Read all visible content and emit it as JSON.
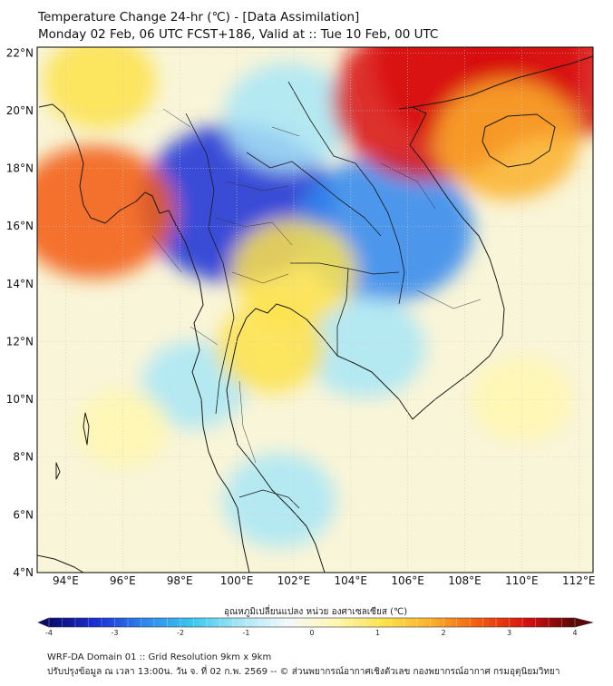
{
  "header": {
    "title": "Temperature Change 24-hr (℃) - [Data Assimilation]",
    "subtitle": "Monday 02 Feb, 06 UTC FCST+186, Valid at :: Tue 10 Feb, 00 UTC"
  },
  "map": {
    "lon_range": [
      93,
      112.5
    ],
    "lat_range": [
      4,
      22.2
    ],
    "lon_ticks": [
      {
        "value": 94,
        "label": "94°E"
      },
      {
        "value": 96,
        "label": "96°E"
      },
      {
        "value": 98,
        "label": "98°E"
      },
      {
        "value": 100,
        "label": "100°E"
      },
      {
        "value": 102,
        "label": "102°E"
      },
      {
        "value": 104,
        "label": "104°E"
      },
      {
        "value": 106,
        "label": "106°E"
      },
      {
        "value": 108,
        "label": "108°E"
      },
      {
        "value": 110,
        "label": "110°E"
      },
      {
        "value": 112,
        "label": "112°E"
      }
    ],
    "lat_ticks": [
      {
        "value": 22,
        "label": "22°N"
      },
      {
        "value": 20,
        "label": "20°N"
      },
      {
        "value": 18,
        "label": "18°N"
      },
      {
        "value": 16,
        "label": "16°N"
      },
      {
        "value": 14,
        "label": "14°N"
      },
      {
        "value": 12,
        "label": "12°N"
      },
      {
        "value": 10,
        "label": "10°N"
      },
      {
        "value": 8,
        "label": "8°N"
      },
      {
        "value": 6,
        "label": "6°N"
      },
      {
        "value": 4,
        "label": "4°N"
      }
    ],
    "anomalies": [
      {
        "lon": 100.0,
        "lat": 16.8,
        "value": -3.0
      },
      {
        "lon": 105.2,
        "lat": 15.9,
        "value": -2.6
      },
      {
        "lon": 101.8,
        "lat": 19.8,
        "value": -1.4
      },
      {
        "lon": 104.5,
        "lat": 11.8,
        "value": -1.2
      },
      {
        "lon": 101.5,
        "lat": 6.5,
        "value": -1.0
      },
      {
        "lon": 98.5,
        "lat": 10.5,
        "value": -0.8
      },
      {
        "lon": 108.5,
        "lat": 21.6,
        "value": 3.4
      },
      {
        "lon": 106.8,
        "lat": 20.4,
        "value": 3.1
      },
      {
        "lon": 111.5,
        "lat": 21.8,
        "value": 3.0
      },
      {
        "lon": 109.5,
        "lat": 19.0,
        "value": 1.8
      },
      {
        "lon": 95.0,
        "lat": 16.5,
        "value": 2.2
      },
      {
        "lon": 102.0,
        "lat": 14.4,
        "value": 1.3
      },
      {
        "lon": 101.2,
        "lat": 11.8,
        "value": 0.9
      },
      {
        "lon": 95.2,
        "lat": 21.0,
        "value": 1.0
      },
      {
        "lon": 110.0,
        "lat": 10.0,
        "value": 0.7
      },
      {
        "lon": 96.0,
        "lat": 9.0,
        "value": 0.5
      }
    ]
  },
  "colorbar": {
    "label": "อุณหภูมิเปลี่ยนแปลง หน่วย องศาเซลเซียส (℃)",
    "min": -4,
    "max": 4,
    "ticks": [
      {
        "value": -4,
        "label": "-4"
      },
      {
        "value": -3,
        "label": "-3"
      },
      {
        "value": -2,
        "label": "-2"
      },
      {
        "value": -1,
        "label": "-1"
      },
      {
        "value": 0,
        "label": "0"
      },
      {
        "value": 1,
        "label": "1"
      },
      {
        "value": 2,
        "label": "2"
      },
      {
        "value": 3,
        "label": "3"
      },
      {
        "value": 4,
        "label": "4"
      }
    ]
  },
  "colors": {
    "scale": [
      "#0a0a6e",
      "#1b2fd6",
      "#2f86ee",
      "#38c8f0",
      "#a8e6f7",
      "#f4f8fb",
      "#fff7b0",
      "#fde24a",
      "#fbb02a",
      "#f25a0e",
      "#d80f0f",
      "#5a0606"
    ]
  },
  "footer": {
    "line1": "WRF-DA Domain 01 :: Grid Resolution 9km x 9km",
    "line2": "ปรับปรุงข้อมูล ณ เวลา 13:00น. วัน จ. ที่ 02 ก.พ. 2569 -- © ส่วนพยากรณ์อากาศเชิงตัวเลข กองพยากรณ์อากาศ กรมอุตุนิยมวิทยา"
  }
}
